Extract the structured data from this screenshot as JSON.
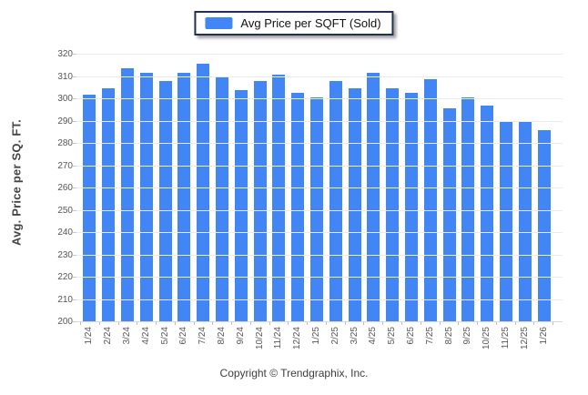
{
  "legend": {
    "label": "Avg Price per SQFT (Sold)",
    "swatch_color": "#4285f4"
  },
  "footer": {
    "copyright": "Copyright © Trendgraphix, Inc."
  },
  "colors": {
    "bar": "#4285f4",
    "legend_border": "#1f3054",
    "gridline": "#ebebeb",
    "axis_text": "#555555"
  },
  "chart_data": {
    "type": "bar",
    "title": "",
    "xlabel": "",
    "ylabel": "Avg. Price per SQ. FT.",
    "ylim": [
      200,
      320
    ],
    "yticks": [
      200,
      210,
      220,
      230,
      240,
      250,
      260,
      270,
      280,
      290,
      300,
      310,
      320
    ],
    "grid": true,
    "legend_position": "top-center",
    "series_name": "Avg Price per SQFT (Sold)",
    "bar_color": "#4285f4",
    "categories": [
      "1/24",
      "2/24",
      "3/24",
      "4/24",
      "5/24",
      "6/24",
      "7/24",
      "8/24",
      "9/24",
      "10/24",
      "11/24",
      "12/24",
      "1/25",
      "2/25",
      "3/25",
      "4/25",
      "5/25",
      "6/25",
      "7/25",
      "8/25",
      "9/25",
      "10/25",
      "11/25",
      "12/25",
      "1/26"
    ],
    "values": [
      302,
      305,
      314,
      312,
      308,
      312,
      316,
      310,
      304,
      308,
      311,
      303,
      301,
      308,
      305,
      312,
      305,
      303,
      309,
      296,
      301,
      297,
      290,
      290,
      286
    ]
  }
}
